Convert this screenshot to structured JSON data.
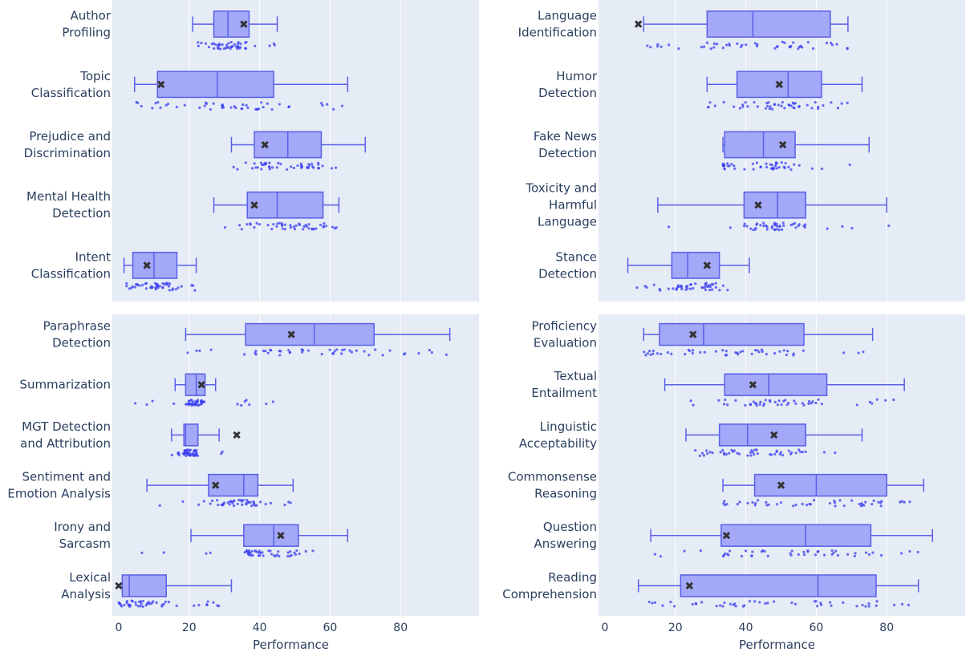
{
  "chart_data": {
    "type": "box",
    "xlabel": "Performance",
    "xlim": [
      -2,
      100
    ],
    "xticks": [
      0,
      20,
      40,
      60,
      80
    ],
    "colors": {
      "plot_bg": "#e5ecf6",
      "box_fill": "#a3a8f8",
      "box_line": "#5a5fe8",
      "points": "#3a3ef0",
      "mean_marker": "#333333",
      "tick_text": "#2a3f5f"
    },
    "panels": [
      {
        "name": "top-left",
        "categories": [
          {
            "label": [
              "Author",
              "Profiling"
            ],
            "min": 21,
            "q1": 27,
            "median": 31,
            "q3": 37,
            "max": 45,
            "mean": 35.5,
            "pmin": 21,
            "pmax": 45
          },
          {
            "label": [
              "Topic",
              "Classification"
            ],
            "min": 4.5,
            "q1": 11,
            "median": 28,
            "q3": 44,
            "max": 65,
            "mean": 12,
            "pmin": 4.5,
            "pmax": 65
          },
          {
            "label": [
              "Prejudice and",
              "Discrimination"
            ],
            "min": 32,
            "q1": 38.5,
            "median": 48,
            "q3": 57.5,
            "max": 70,
            "mean": 41.5,
            "pmin": 32,
            "pmax": 70
          },
          {
            "label": [
              "Mental Health",
              "Detection"
            ],
            "min": 27,
            "q1": 36.5,
            "median": 45,
            "q3": 58,
            "max": 62.5,
            "mean": 38.5,
            "pmin": 27,
            "pmax": 62.5
          },
          {
            "label": [
              "Intent",
              "Classification"
            ],
            "min": 1.5,
            "q1": 4,
            "median": 10,
            "q3": 16.5,
            "max": 22,
            "mean": 8,
            "pmin": 1.5,
            "pmax": 22
          }
        ]
      },
      {
        "name": "top-right",
        "categories": [
          {
            "label": [
              "Language",
              "Identification"
            ],
            "min": 11,
            "q1": 29,
            "median": 42,
            "q3": 64,
            "max": 69,
            "mean": 9.5,
            "pmin": 11,
            "pmax": 69
          },
          {
            "label": [
              "Humor",
              "Detection"
            ],
            "min": 29,
            "q1": 37.5,
            "median": 52,
            "q3": 61.5,
            "max": 73,
            "mean": 49.5,
            "pmin": 29,
            "pmax": 73
          },
          {
            "label": [
              "Fake News",
              "Detection"
            ],
            "min": 33.5,
            "q1": 34,
            "median": 45,
            "q3": 54,
            "max": 75,
            "mean": 50.5,
            "pmin": 33.5,
            "pmax": 75
          },
          {
            "label": [
              "Toxicity and",
              "Harmful",
              "Language"
            ],
            "min": 15,
            "q1": 39.5,
            "median": 49,
            "q3": 57,
            "max": 80,
            "mean": 43.5,
            "pmin": 15,
            "pmax": 83
          },
          {
            "label": [
              "Stance",
              "Detection"
            ],
            "min": 6.5,
            "q1": 19,
            "median": 23.5,
            "q3": 32.5,
            "max": 41,
            "mean": 29,
            "pmin": 6.5,
            "pmax": 41
          }
        ]
      },
      {
        "name": "bottom-left",
        "categories": [
          {
            "label": [
              "Paraphrase",
              "Detection"
            ],
            "min": 19,
            "q1": 36,
            "median": 55.5,
            "q3": 72.5,
            "max": 94,
            "mean": 49,
            "pmin": 19,
            "pmax": 94
          },
          {
            "label": [
              "Summarization"
            ],
            "min": 16,
            "q1": 19,
            "median": 22,
            "q3": 24.5,
            "max": 27.5,
            "mean": 23.5,
            "pmin": 0.5,
            "pmax": 45
          },
          {
            "label": [
              "MGT Detection",
              "and Attribution"
            ],
            "min": 15,
            "q1": 18.5,
            "median": 19,
            "q3": 22.5,
            "max": 28.5,
            "mean": 33.5,
            "pmin": 15,
            "pmax": 32
          },
          {
            "label": [
              "Sentiment and",
              "Emotion Analysis"
            ],
            "min": 8,
            "q1": 25.5,
            "median": 35.5,
            "q3": 39.5,
            "max": 49.5,
            "mean": 27.5,
            "pmin": 8,
            "pmax": 49.5
          },
          {
            "label": [
              "Irony and",
              "Sarcasm"
            ],
            "min": 20.5,
            "q1": 35.5,
            "median": 44,
            "q3": 51,
            "max": 65,
            "mean": 46,
            "pmin": 6,
            "pmax": 65
          },
          {
            "label": [
              "Lexical",
              "Analysis"
            ],
            "min": 1,
            "q1": 1,
            "median": 3,
            "q3": 13.5,
            "max": 32,
            "mean": 0,
            "pmin": 0,
            "pmax": 32
          }
        ]
      },
      {
        "name": "bottom-right",
        "categories": [
          {
            "label": [
              "Proficiency",
              "Evaluation"
            ],
            "min": 11,
            "q1": 15.5,
            "median": 28,
            "q3": 56.5,
            "max": 76,
            "mean": 25,
            "pmin": 11,
            "pmax": 76
          },
          {
            "label": [
              "Textual",
              "Entailment"
            ],
            "min": 17,
            "q1": 34,
            "median": 46.5,
            "q3": 63,
            "max": 85,
            "mean": 42,
            "pmin": 17,
            "pmax": 85
          },
          {
            "label": [
              "Linguistic",
              "Acceptability"
            ],
            "min": 23,
            "q1": 32.5,
            "median": 40.5,
            "q3": 57,
            "max": 73,
            "mean": 48,
            "pmin": 23,
            "pmax": 73
          },
          {
            "label": [
              "Commonsense",
              "Reasoning"
            ],
            "min": 33.5,
            "q1": 42.5,
            "median": 60,
            "q3": 80,
            "max": 90.5,
            "mean": 50,
            "pmin": 33.5,
            "pmax": 90.5
          },
          {
            "label": [
              "Question",
              "Answering"
            ],
            "min": 13,
            "q1": 33,
            "median": 57,
            "q3": 75.5,
            "max": 93,
            "mean": 34.5,
            "pmin": 13,
            "pmax": 93
          },
          {
            "label": [
              "Reading",
              "Comprehension"
            ],
            "min": 9.5,
            "q1": 21.5,
            "median": 60.5,
            "q3": 77,
            "max": 89,
            "mean": 24,
            "pmin": 9.5,
            "pmax": 89
          }
        ]
      }
    ]
  }
}
